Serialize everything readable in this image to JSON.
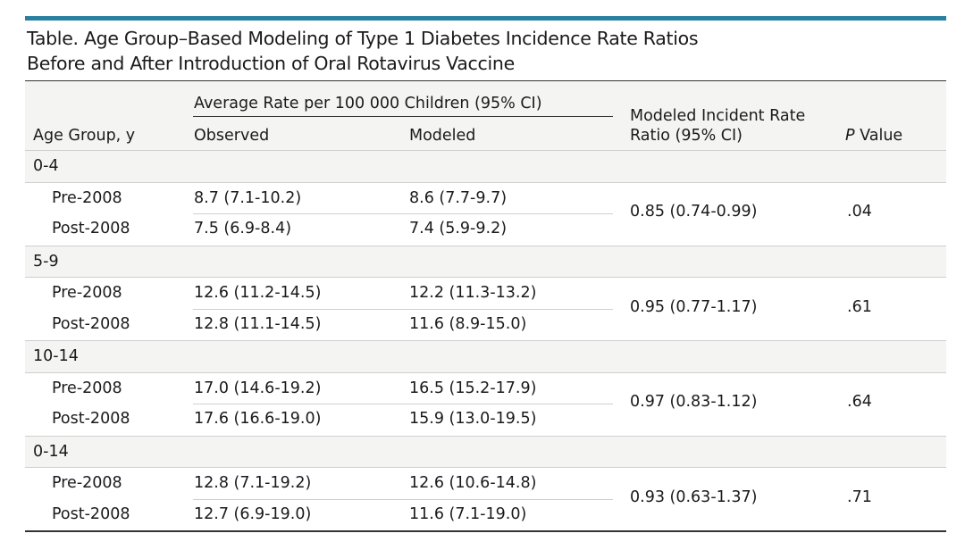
{
  "title": {
    "line1": "Table. Age Group–Based Modeling of Type 1 Diabetes Incidence Rate Ratios",
    "line2": "Before and After Introduction of Oral Rotavirus Vaccine"
  },
  "colors": {
    "accent_bar": "#2b7fa0",
    "shade": "#f4f4f2",
    "rule": "#333333"
  },
  "header": {
    "age_group": "Age Group, y",
    "span_label": "Average Rate per 100 000 Children (95% CI)",
    "observed": "Observed",
    "modeled": "Modeled",
    "ratio_line1": "Modeled Incident Rate",
    "ratio_line2": "Ratio (95% CI)",
    "p_italic": "P",
    "p_rest": " Value"
  },
  "groups": [
    {
      "label": "0-4",
      "rows": [
        {
          "period": "Pre-2008",
          "observed": "8.7 (7.1-10.2)",
          "modeled": "8.6 (7.7-9.7)"
        },
        {
          "period": "Post-2008",
          "observed": "7.5 (6.9-8.4)",
          "modeled": "7.4 (5.9-9.2)"
        }
      ],
      "ratio": "0.85 (0.74-0.99)",
      "p": ".04"
    },
    {
      "label": "5-9",
      "rows": [
        {
          "period": "Pre-2008",
          "observed": "12.6 (11.2-14.5)",
          "modeled": "12.2 (11.3-13.2)"
        },
        {
          "period": "Post-2008",
          "observed": "12.8 (11.1-14.5)",
          "modeled": "11.6 (8.9-15.0)"
        }
      ],
      "ratio": "0.95 (0.77-1.17)",
      "p": ".61"
    },
    {
      "label": "10-14",
      "rows": [
        {
          "period": "Pre-2008",
          "observed": "17.0 (14.6-19.2)",
          "modeled": "16.5 (15.2-17.9)"
        },
        {
          "period": "Post-2008",
          "observed": "17.6 (16.6-19.0)",
          "modeled": "15.9 (13.0-19.5)"
        }
      ],
      "ratio": "0.97 (0.83-1.12)",
      "p": ".64"
    },
    {
      "label": "0-14",
      "rows": [
        {
          "period": "Pre-2008",
          "observed": "12.8 (7.1-19.2)",
          "modeled": "12.6 (10.6-14.8)"
        },
        {
          "period": "Post-2008",
          "observed": "12.7 (6.9-19.0)",
          "modeled": "11.6 (7.1-19.0)"
        }
      ],
      "ratio": "0.93 (0.63-1.37)",
      "p": ".71"
    }
  ]
}
